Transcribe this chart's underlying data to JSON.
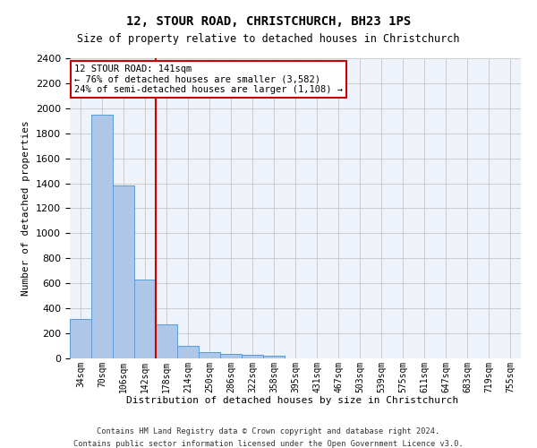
{
  "title1": "12, STOUR ROAD, CHRISTCHURCH, BH23 1PS",
  "title2": "Size of property relative to detached houses in Christchurch",
  "xlabel": "Distribution of detached houses by size in Christchurch",
  "ylabel": "Number of detached properties",
  "bar_values": [
    315,
    1950,
    1385,
    630,
    275,
    100,
    48,
    35,
    30,
    22,
    0,
    0,
    0,
    0,
    0,
    0,
    0,
    0,
    0,
    0,
    0
  ],
  "bar_labels": [
    "34sqm",
    "70sqm",
    "106sqm",
    "142sqm",
    "178sqm",
    "214sqm",
    "250sqm",
    "286sqm",
    "322sqm",
    "358sqm",
    "395sqm",
    "431sqm",
    "467sqm",
    "503sqm",
    "539sqm",
    "575sqm",
    "611sqm",
    "647sqm",
    "683sqm",
    "719sqm",
    "755sqm"
  ],
  "bar_color": "#AEC6E8",
  "bar_edge_color": "#5B9BD5",
  "vline_x": 3.5,
  "vline_color": "#CC0000",
  "annotation_text": "12 STOUR ROAD: 141sqm\n← 76% of detached houses are smaller (3,582)\n24% of semi-detached houses are larger (1,108) →",
  "annotation_box_color": "#CC0000",
  "ylim": [
    0,
    2400
  ],
  "yticks": [
    0,
    200,
    400,
    600,
    800,
    1000,
    1200,
    1400,
    1600,
    1800,
    2000,
    2200,
    2400
  ],
  "grid_color": "#CCCCCC",
  "background_color": "#EEF2FB",
  "footer1": "Contains HM Land Registry data © Crown copyright and database right 2024.",
  "footer2": "Contains public sector information licensed under the Open Government Licence v3.0."
}
